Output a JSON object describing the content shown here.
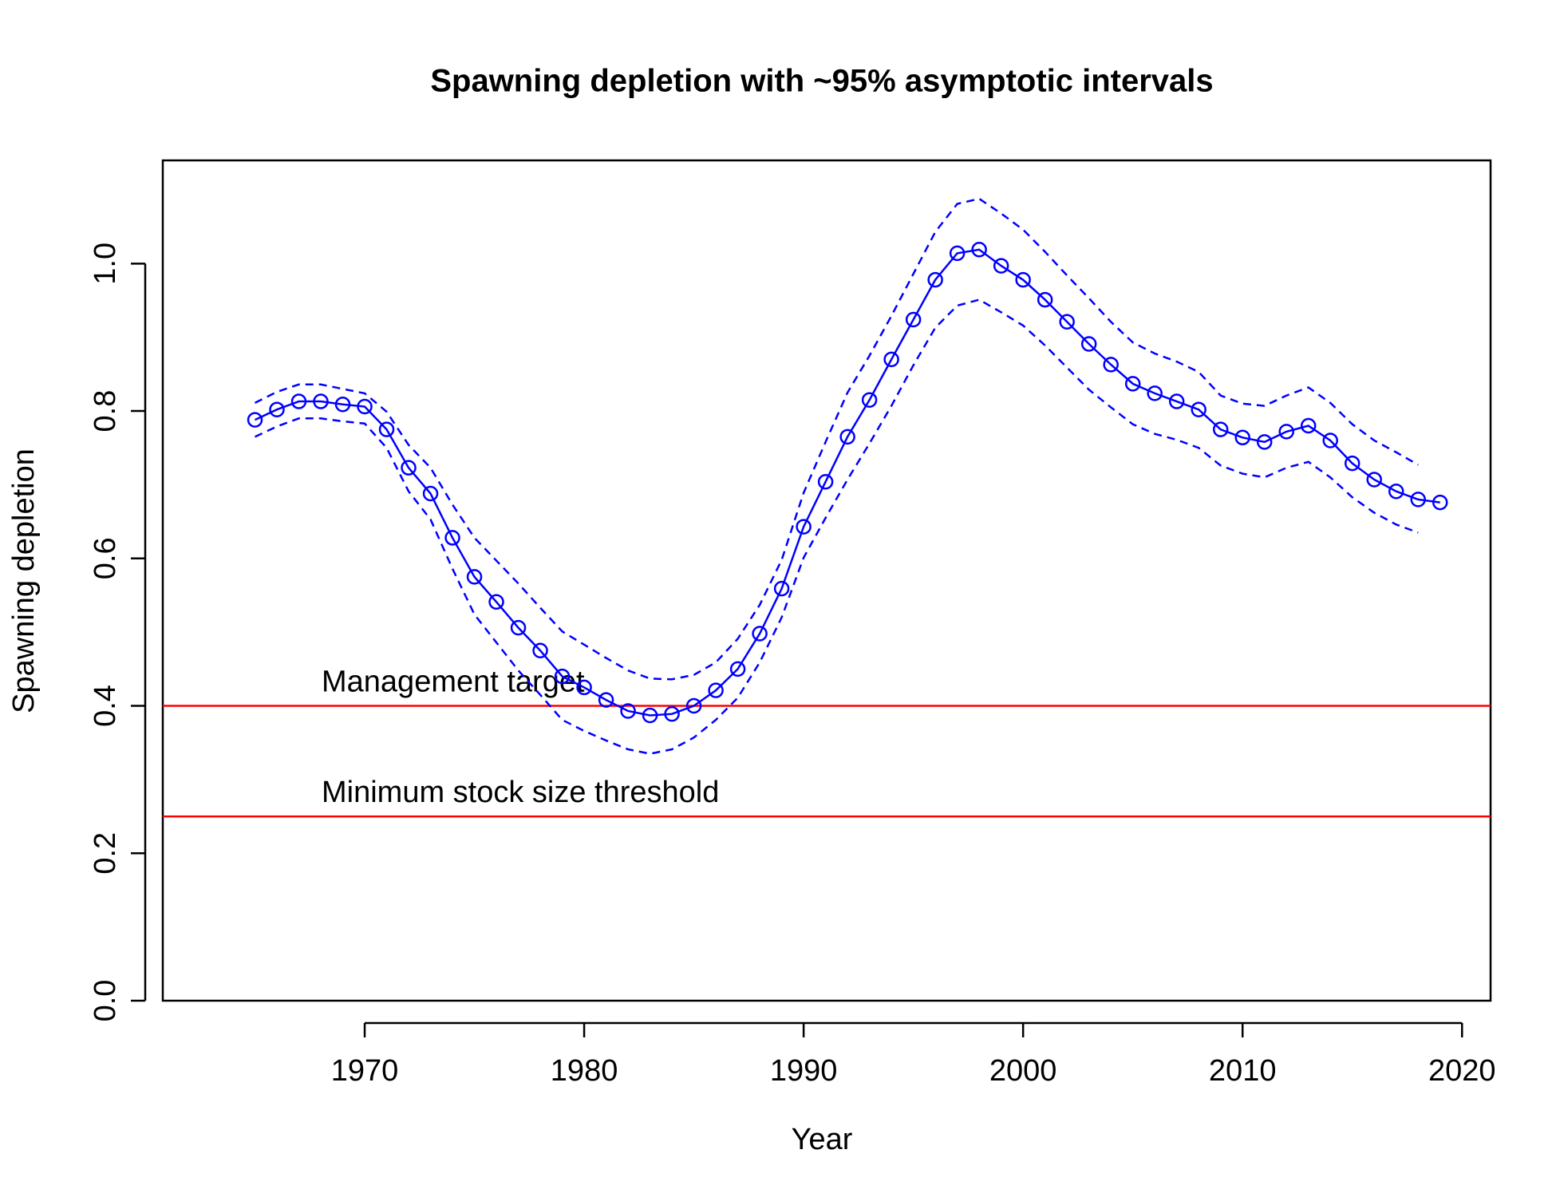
{
  "chart_data": {
    "type": "line",
    "title": "Spawning depletion with ~95% asymptotic intervals",
    "xlabel": "Year",
    "ylabel": "Spawning depletion",
    "x": [
      1965,
      1966,
      1967,
      1968,
      1969,
      1970,
      1971,
      1972,
      1973,
      1974,
      1975,
      1976,
      1977,
      1978,
      1979,
      1980,
      1981,
      1982,
      1983,
      1984,
      1985,
      1986,
      1987,
      1988,
      1989,
      1990,
      1991,
      1992,
      1993,
      1994,
      1995,
      1996,
      1997,
      1998,
      1999,
      2000,
      2001,
      2002,
      2003,
      2004,
      2005,
      2006,
      2007,
      2008,
      2009,
      2010,
      2011,
      2012,
      2013,
      2014,
      2015,
      2016,
      2017,
      2018,
      2019
    ],
    "series": [
      {
        "name": "Estimate",
        "color": "#0000ff",
        "style": "solid",
        "points": true,
        "values": [
          0.788,
          0.802,
          0.813,
          0.813,
          0.809,
          0.806,
          0.775,
          0.723,
          0.688,
          0.628,
          0.575,
          0.541,
          0.506,
          0.475,
          0.44,
          0.425,
          0.408,
          0.393,
          0.387,
          0.389,
          0.4,
          0.421,
          0.45,
          0.498,
          0.559,
          0.643,
          0.704,
          0.765,
          0.815,
          0.87,
          0.924,
          0.978,
          1.014,
          1.019,
          0.997,
          0.978,
          0.951,
          0.921,
          0.891,
          0.863,
          0.837,
          0.824,
          0.813,
          0.802,
          0.775,
          0.764,
          0.758,
          0.772,
          0.78,
          0.76,
          0.729,
          0.707,
          0.691,
          0.68,
          0.676
        ]
      },
      {
        "name": "Upper",
        "color": "#0000ff",
        "style": "dashed",
        "points": false,
        "values": [
          0.811,
          0.826,
          0.836,
          0.836,
          0.83,
          0.824,
          0.799,
          0.754,
          0.723,
          0.673,
          0.628,
          0.597,
          0.566,
          0.533,
          0.501,
          0.483,
          0.465,
          0.448,
          0.437,
          0.436,
          0.442,
          0.459,
          0.491,
          0.537,
          0.598,
          0.689,
          0.758,
          0.825,
          0.875,
          0.929,
          0.986,
          1.043,
          1.081,
          1.088,
          1.068,
          1.046,
          1.016,
          0.984,
          0.953,
          0.921,
          0.893,
          0.878,
          0.867,
          0.853,
          0.821,
          0.81,
          0.807,
          0.821,
          0.832,
          0.811,
          0.782,
          0.76,
          0.744,
          0.727,
          null
        ]
      },
      {
        "name": "Lower",
        "color": "#0000ff",
        "style": "dashed",
        "points": false,
        "values": [
          0.765,
          0.779,
          0.79,
          0.79,
          0.786,
          0.783,
          0.75,
          0.691,
          0.653,
          0.586,
          0.524,
          0.486,
          0.448,
          0.415,
          0.381,
          0.366,
          0.353,
          0.341,
          0.335,
          0.341,
          0.357,
          0.381,
          0.411,
          0.459,
          0.52,
          0.601,
          0.655,
          0.707,
          0.756,
          0.807,
          0.862,
          0.913,
          0.943,
          0.951,
          0.934,
          0.916,
          0.889,
          0.859,
          0.829,
          0.805,
          0.782,
          0.769,
          0.761,
          0.75,
          0.726,
          0.715,
          0.71,
          0.723,
          0.731,
          0.71,
          0.683,
          0.662,
          0.646,
          0.635,
          null
        ]
      }
    ],
    "reference_lines": [
      {
        "value": 0.4,
        "label": "Management target",
        "color": "#ff0000"
      },
      {
        "value": 0.25,
        "label": "Minimum stock size threshold",
        "color": "#ff0000"
      }
    ],
    "xlim": [
      1960.8,
      2021.3
    ],
    "ylim": [
      0,
      1.14
    ],
    "xticks": [
      1970,
      1980,
      1990,
      2000,
      2010,
      2020
    ],
    "yticks": [
      {
        "value": 0,
        "label": "0.0"
      },
      0.2,
      0.4,
      0.6,
      0.8,
      {
        "value": 1,
        "label": "1.0"
      }
    ]
  }
}
